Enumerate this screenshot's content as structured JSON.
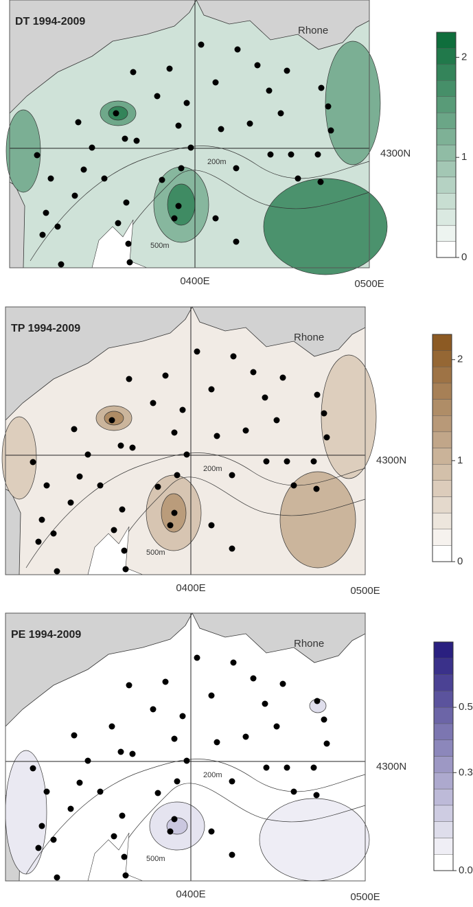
{
  "panels": [
    {
      "title": "DT 1994-2009",
      "river": "Rhone",
      "lat_label": "4300N",
      "lon_labels": [
        "0400E",
        "0500E"
      ],
      "depth_labels": [
        "200m",
        "500m"
      ],
      "colorbar": {
        "range": [
          0,
          2.25
        ],
        "ticks": [
          0,
          1,
          2
        ],
        "color": "#0f6e3c"
      }
    },
    {
      "title": "TP 1994-2009",
      "river": "Rhone",
      "lat_label": "4300N",
      "lon_labels": [
        "0400E",
        "0500E"
      ],
      "depth_labels": [
        "200m",
        "500m"
      ],
      "colorbar": {
        "range": [
          0,
          2.25
        ],
        "ticks": [
          0,
          1,
          2
        ],
        "color": "#8c5a23"
      }
    },
    {
      "title": "PE 1994-2009",
      "river": "Rhone",
      "lat_label": "4300N",
      "lon_labels": [
        "0400E",
        "0500E"
      ],
      "depth_labels": [
        "200m",
        "500m"
      ],
      "colorbar": {
        "range": [
          0,
          0.7
        ],
        "ticks": [
          {
            "value": 0,
            "label": "0.0"
          },
          0.3,
          0.5
        ],
        "color": "#2a2080"
      }
    }
  ]
}
